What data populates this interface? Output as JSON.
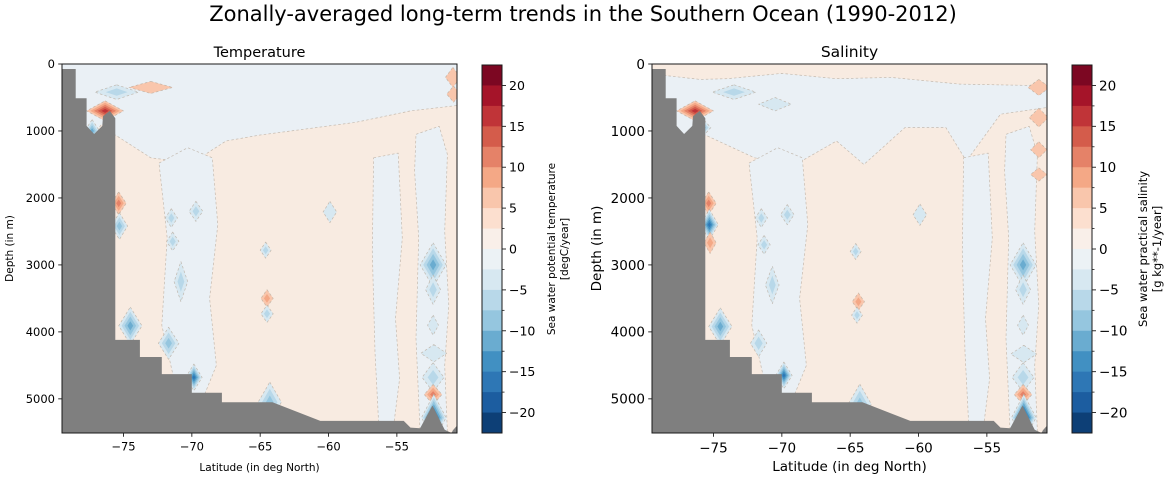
{
  "figure": {
    "suptitle": "Zonally-averaged long-term trends in the Southern Ocean (1990-2012)",
    "background": "#ffffff"
  },
  "chart_data": {
    "type": "contour",
    "suptitle": "Zonally-averaged long-term trends in the Southern Ocean (1990-2012)",
    "shared": {
      "xlabel": "Latitude (in deg North)",
      "ylabel": "Depth (in m)",
      "xlim": [
        -79.5,
        -50.6
      ],
      "ylim_depth": [
        0,
        5510
      ],
      "x_tick_labels": [
        "−75",
        "−70",
        "−65",
        "−60",
        "−55"
      ],
      "x_tick_values": [
        -75,
        -70,
        -65,
        -60,
        -55
      ],
      "y_tick_labels": [
        "0",
        "1000",
        "2000",
        "3000",
        "4000",
        "5000"
      ],
      "y_tick_values": [
        0,
        1000,
        2000,
        3000,
        4000,
        5000
      ],
      "colorbar_tick_labels": [
        "20",
        "15",
        "10",
        "5",
        "0",
        "−5",
        "−10",
        "−15",
        "−20"
      ],
      "colorbar_tick_values": [
        20,
        15,
        10,
        5,
        0,
        -5,
        -10,
        -15,
        -20
      ],
      "colorbar_minor_tick_values": [
        17.5,
        12.5,
        7.5,
        2.5,
        -2.5,
        -7.5,
        -12.5,
        -17.5
      ],
      "colorbar_range": [
        -22.5,
        22.5
      ],
      "colormap": "RdBu_r, 18 discrete levels",
      "colormap_colors_top_to_bottom": [
        "#7c0722",
        "#a51429",
        "#c03438",
        "#d45c4b",
        "#e58268",
        "#f4a886",
        "#f9c6ac",
        "#fcdfcf",
        "#f9efe9",
        "#ecf2f5",
        "#d7e8f1",
        "#b8d8e9",
        "#95c6df",
        "#6aacd0",
        "#4190c2",
        "#2e77b5",
        "#1c5da0",
        "#0d3f76"
      ],
      "warm_ramp_outer_to_inner": [
        "#f9c6ac",
        "#f4a886",
        "#e58268",
        "#d45c4b",
        "#c03438",
        "#a51429"
      ],
      "cool_ramp_outer_to_inner": [
        "#d7e8f1",
        "#b8d8e9",
        "#95c6df",
        "#6aacd0",
        "#4190c2",
        "#2e77b5",
        "#1c5da0",
        "#0d3f76"
      ],
      "background_positive": "#f8ebe1",
      "background_negative": "#eaf0f5",
      "contour_line_color": "#b9ac9f",
      "terrain_color": "#7f7f7f",
      "terrain_outline": [
        [
          -79.5,
          5510
        ],
        [
          -79.5,
          75
        ],
        [
          -78.5,
          75
        ],
        [
          -78.5,
          510
        ],
        [
          -77.7,
          510
        ],
        [
          -77.7,
          925
        ],
        [
          -77.15,
          1045
        ],
        [
          -76.55,
          925
        ],
        [
          -76.5,
          780
        ],
        [
          -76.0,
          700
        ],
        [
          -75.6,
          810
        ],
        [
          -75.6,
          4120
        ],
        [
          -73.8,
          4120
        ],
        [
          -73.8,
          4375
        ],
        [
          -72.2,
          4375
        ],
        [
          -72.2,
          4630
        ],
        [
          -70.0,
          4630
        ],
        [
          -70.0,
          4910
        ],
        [
          -67.8,
          4910
        ],
        [
          -67.8,
          5050
        ],
        [
          -64.1,
          5050
        ],
        [
          -60.6,
          5330
        ],
        [
          -54.5,
          5330
        ],
        [
          -54.0,
          5430
        ],
        [
          -53.3,
          5440
        ],
        [
          -52.4,
          5100
        ],
        [
          -51.5,
          5460
        ],
        [
          -51.0,
          5510
        ],
        [
          -50.9,
          5470
        ],
        [
          -50.6,
          5400
        ],
        [
          -50.6,
          5510
        ]
      ],
      "blue_regions": [
        [
          [
            -72.4,
            1480
          ],
          [
            -70.3,
            1250
          ],
          [
            -68.5,
            1400
          ],
          [
            -68.1,
            2400
          ],
          [
            -68.7,
            3500
          ],
          [
            -68.2,
            4500
          ],
          [
            -69.2,
            5000
          ],
          [
            -71.2,
            4800
          ],
          [
            -72.2,
            3900
          ],
          [
            -71.8,
            2600
          ]
        ],
        [
          [
            -56.7,
            1400
          ],
          [
            -54.9,
            1330
          ],
          [
            -54.6,
            2600
          ],
          [
            -55.1,
            3800
          ],
          [
            -54.8,
            4700
          ],
          [
            -55.3,
            5500
          ],
          [
            -56.3,
            5500
          ],
          [
            -56.6,
            4300
          ],
          [
            -56.8,
            2800
          ]
        ],
        [
          [
            -53.6,
            1050
          ],
          [
            -51.9,
            930
          ],
          [
            -51.3,
            1350
          ],
          [
            -51.5,
            2500
          ],
          [
            -51.2,
            3600
          ],
          [
            -51.5,
            4500
          ],
          [
            -51.3,
            5500
          ],
          [
            -53.3,
            5500
          ],
          [
            -53.6,
            4100
          ],
          [
            -53.4,
            2600
          ],
          [
            -53.7,
            1600
          ]
        ]
      ]
    },
    "panels": [
      {
        "title": "Temperature",
        "colorbar_label_line1": "Sea water potential temperature",
        "colorbar_label_line2": "[degC/year]",
        "blue_layer": [
          [
            -79.5,
            980
          ],
          [
            -78.5,
            980
          ],
          [
            -77.2,
            1060
          ],
          [
            -76.6,
            900
          ],
          [
            -75.6,
            1060
          ],
          [
            -73,
            1400
          ],
          [
            -70,
            1480
          ],
          [
            -67.5,
            1150
          ],
          [
            -65,
            1060
          ],
          [
            -62,
            980
          ],
          [
            -58,
            870
          ],
          [
            -54,
            700
          ],
          [
            -50.6,
            620
          ],
          [
            -50.6,
            0
          ],
          [
            -79.5,
            0
          ]
        ],
        "spots": [
          [
            -76.35,
            700,
            1.35,
            150,
            "w",
            5
          ],
          [
            -77.3,
            1000,
            0.55,
            170,
            "c",
            4
          ],
          [
            -75.5,
            420,
            1.6,
            110,
            "c",
            2
          ],
          [
            -73.0,
            350,
            1.6,
            90,
            "w",
            1
          ],
          [
            -75.35,
            2080,
            0.55,
            170,
            "w",
            3
          ],
          [
            -75.3,
            2420,
            0.6,
            200,
            "c",
            3
          ],
          [
            -74.5,
            3910,
            0.85,
            280,
            "c",
            4
          ],
          [
            -71.7,
            4170,
            0.75,
            240,
            "c",
            3
          ],
          [
            -69.85,
            4680,
            0.6,
            200,
            "c",
            6
          ],
          [
            -71.5,
            2300,
            0.45,
            140,
            "c",
            2
          ],
          [
            -71.4,
            2650,
            0.45,
            140,
            "c",
            2
          ],
          [
            -70.8,
            3250,
            0.5,
            300,
            "c",
            2
          ],
          [
            -69.7,
            2200,
            0.5,
            150,
            "c",
            2
          ],
          [
            -64.6,
            2780,
            0.4,
            120,
            "c",
            2
          ],
          [
            -64.5,
            3500,
            0.45,
            130,
            "w",
            2
          ],
          [
            -64.5,
            3730,
            0.45,
            130,
            "c",
            2
          ],
          [
            -59.9,
            2210,
            0.5,
            160,
            "c",
            1
          ],
          [
            -64.3,
            5050,
            0.85,
            300,
            "c",
            3
          ],
          [
            -52.35,
            3000,
            0.95,
            330,
            "c",
            4
          ],
          [
            -52.35,
            3370,
            0.55,
            220,
            "c",
            2
          ],
          [
            -52.35,
            3900,
            0.4,
            150,
            "c",
            1
          ],
          [
            -52.3,
            4320,
            0.95,
            130,
            "c",
            1
          ],
          [
            -52.35,
            4680,
            0.8,
            220,
            "c",
            2
          ],
          [
            -52.35,
            4935,
            0.65,
            150,
            "w",
            3
          ],
          [
            -52.3,
            5280,
            0.9,
            350,
            "c",
            7
          ],
          [
            -50.9,
            200,
            0.55,
            150,
            "w",
            1
          ],
          [
            -50.85,
            450,
            0.5,
            120,
            "w",
            1
          ]
        ]
      },
      {
        "title": "Salinity",
        "colorbar_label_line1": "Sea water practical salinity",
        "colorbar_label_line2": "[g kg**-1/year]",
        "blue_layer": [
          [
            -79.5,
            980
          ],
          [
            -78.5,
            980
          ],
          [
            -77.2,
            1060
          ],
          [
            -75.6,
            1060
          ],
          [
            -72,
            1400
          ],
          [
            -69,
            1500
          ],
          [
            -66,
            1150
          ],
          [
            -64,
            1500
          ],
          [
            -61,
            950
          ],
          [
            -58,
            950
          ],
          [
            -56.5,
            1450
          ],
          [
            -54,
            750
          ],
          [
            -50.6,
            650
          ],
          [
            -50.6,
            300
          ],
          [
            -52,
            320
          ],
          [
            -57,
            300
          ],
          [
            -62,
            200
          ],
          [
            -66,
            220
          ],
          [
            -70,
            140
          ],
          [
            -74,
            220
          ],
          [
            -76,
            230
          ],
          [
            -79.5,
            150
          ]
        ],
        "spots": [
          [
            -76.35,
            700,
            1.35,
            150,
            "w",
            5
          ],
          [
            -75.9,
            950,
            0.7,
            160,
            "c",
            4
          ],
          [
            -73.5,
            420,
            1.6,
            110,
            "c",
            2
          ],
          [
            -70.5,
            600,
            1.2,
            100,
            "c",
            1
          ],
          [
            -75.35,
            2080,
            0.55,
            170,
            "w",
            3
          ],
          [
            -75.3,
            2400,
            0.65,
            230,
            "c",
            6
          ],
          [
            -75.25,
            2670,
            0.45,
            160,
            "w",
            2
          ],
          [
            -74.5,
            3920,
            0.85,
            280,
            "c",
            4
          ],
          [
            -71.7,
            4170,
            0.6,
            200,
            "c",
            2
          ],
          [
            -69.85,
            4650,
            0.6,
            200,
            "c",
            6
          ],
          [
            -71.5,
            2300,
            0.45,
            140,
            "c",
            2
          ],
          [
            -71.3,
            2700,
            0.45,
            140,
            "c",
            2
          ],
          [
            -70.7,
            3300,
            0.5,
            280,
            "c",
            2
          ],
          [
            -69.6,
            2250,
            0.5,
            150,
            "c",
            2
          ],
          [
            -64.6,
            2800,
            0.4,
            120,
            "c",
            2
          ],
          [
            -64.4,
            3550,
            0.45,
            130,
            "w",
            2
          ],
          [
            -64.5,
            3750,
            0.4,
            120,
            "c",
            2
          ],
          [
            -59.9,
            2250,
            0.5,
            160,
            "c",
            1
          ],
          [
            -64.3,
            5080,
            0.85,
            300,
            "c",
            3
          ],
          [
            -52.35,
            3000,
            0.95,
            330,
            "c",
            4
          ],
          [
            -52.35,
            3370,
            0.55,
            220,
            "c",
            2
          ],
          [
            -52.35,
            3900,
            0.4,
            150,
            "c",
            1
          ],
          [
            -52.3,
            4330,
            0.95,
            130,
            "c",
            1
          ],
          [
            -52.35,
            4680,
            0.8,
            220,
            "c",
            2
          ],
          [
            -52.35,
            4935,
            0.65,
            150,
            "w",
            3
          ],
          [
            -52.3,
            5280,
            0.9,
            350,
            "c",
            8
          ],
          [
            -51.2,
            350,
            0.8,
            120,
            "w",
            1
          ],
          [
            -51.2,
            800,
            0.7,
            140,
            "w",
            1
          ],
          [
            -51.2,
            1280,
            0.6,
            120,
            "w",
            1
          ],
          [
            -51.2,
            1650,
            0.6,
            100,
            "w",
            1
          ]
        ]
      }
    ]
  }
}
